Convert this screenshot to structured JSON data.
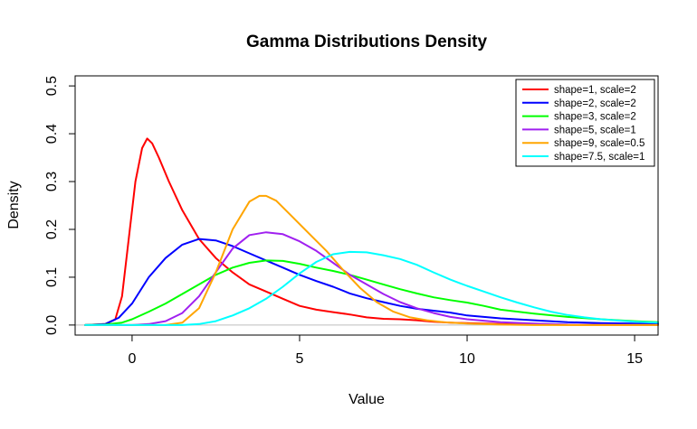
{
  "chart_data": {
    "type": "line",
    "title": "Gamma Distributions Density",
    "xlabel": "Value",
    "ylabel": "Density",
    "xlim": [
      -1.7,
      15.7
    ],
    "ylim": [
      -0.021,
      0.521
    ],
    "x_ticks": [
      0,
      5,
      10,
      15
    ],
    "y_ticks": [
      0.0,
      0.1,
      0.2,
      0.3,
      0.4,
      0.5
    ],
    "x_tick_labels": [
      "0",
      "5",
      "10",
      "15"
    ],
    "y_tick_labels": [
      "0.0",
      "0.1",
      "0.2",
      "0.3",
      "0.4",
      "0.5"
    ],
    "baseline": {
      "y": 0,
      "color": "#bebebe"
    },
    "grid": false,
    "legend_position": "top-right",
    "series": [
      {
        "name": "shape=1, scale=2",
        "color": "#ff0000",
        "points": [
          [
            -1.4,
            0
          ],
          [
            -0.8,
            0.002
          ],
          [
            -0.5,
            0.012
          ],
          [
            -0.3,
            0.06
          ],
          [
            -0.1,
            0.18
          ],
          [
            0.1,
            0.3
          ],
          [
            0.3,
            0.37
          ],
          [
            0.45,
            0.39
          ],
          [
            0.6,
            0.38
          ],
          [
            0.8,
            0.35
          ],
          [
            1.1,
            0.3
          ],
          [
            1.5,
            0.24
          ],
          [
            2.0,
            0.18
          ],
          [
            2.5,
            0.14
          ],
          [
            3.0,
            0.11
          ],
          [
            3.5,
            0.085
          ],
          [
            4.0,
            0.07
          ],
          [
            4.5,
            0.055
          ],
          [
            5.0,
            0.04
          ],
          [
            5.5,
            0.032
          ],
          [
            6.0,
            0.027
          ],
          [
            6.5,
            0.022
          ],
          [
            7.0,
            0.016
          ],
          [
            7.5,
            0.013
          ],
          [
            8.0,
            0.012
          ],
          [
            8.5,
            0.01
          ],
          [
            9.0,
            0.007
          ],
          [
            9.5,
            0.005
          ],
          [
            10.0,
            0.004
          ],
          [
            11.0,
            0.002
          ],
          [
            12.0,
            0.001
          ],
          [
            13.0,
            0.0005
          ],
          [
            15.7,
            0
          ]
        ]
      },
      {
        "name": "shape=2, scale=2",
        "color": "#0000ff",
        "points": [
          [
            -1.4,
            0
          ],
          [
            -0.8,
            0.002
          ],
          [
            -0.4,
            0.015
          ],
          [
            0,
            0.045
          ],
          [
            0.5,
            0.1
          ],
          [
            1.0,
            0.14
          ],
          [
            1.5,
            0.168
          ],
          [
            2.0,
            0.18
          ],
          [
            2.5,
            0.177
          ],
          [
            3.0,
            0.165
          ],
          [
            3.5,
            0.15
          ],
          [
            4.0,
            0.135
          ],
          [
            4.5,
            0.12
          ],
          [
            5.0,
            0.105
          ],
          [
            5.5,
            0.092
          ],
          [
            6.0,
            0.08
          ],
          [
            6.5,
            0.066
          ],
          [
            7.0,
            0.056
          ],
          [
            7.5,
            0.048
          ],
          [
            8.0,
            0.04
          ],
          [
            8.5,
            0.034
          ],
          [
            9.0,
            0.03
          ],
          [
            9.5,
            0.026
          ],
          [
            10.0,
            0.02
          ],
          [
            11.0,
            0.014
          ],
          [
            12.0,
            0.01
          ],
          [
            13.0,
            0.006
          ],
          [
            14.0,
            0.004
          ],
          [
            15.0,
            0.003
          ],
          [
            15.7,
            0.002
          ]
        ]
      },
      {
        "name": "shape=3, scale=2",
        "color": "#00ff00",
        "points": [
          [
            -1.4,
            0
          ],
          [
            -0.8,
            0.001
          ],
          [
            -0.3,
            0.005
          ],
          [
            0,
            0.012
          ],
          [
            0.5,
            0.028
          ],
          [
            1.0,
            0.045
          ],
          [
            1.5,
            0.065
          ],
          [
            2.0,
            0.085
          ],
          [
            2.5,
            0.105
          ],
          [
            3.0,
            0.12
          ],
          [
            3.5,
            0.13
          ],
          [
            4.0,
            0.135
          ],
          [
            4.5,
            0.134
          ],
          [
            5.0,
            0.128
          ],
          [
            5.5,
            0.12
          ],
          [
            6.0,
            0.113
          ],
          [
            6.5,
            0.105
          ],
          [
            7.0,
            0.095
          ],
          [
            7.5,
            0.085
          ],
          [
            8.0,
            0.075
          ],
          [
            8.5,
            0.066
          ],
          [
            9.0,
            0.058
          ],
          [
            9.5,
            0.052
          ],
          [
            10.0,
            0.047
          ],
          [
            10.5,
            0.04
          ],
          [
            11.0,
            0.032
          ],
          [
            12.0,
            0.024
          ],
          [
            13.0,
            0.017
          ],
          [
            14.0,
            0.012
          ],
          [
            15.0,
            0.008
          ],
          [
            15.7,
            0.006
          ]
        ]
      },
      {
        "name": "shape=5, scale=1",
        "color": "#a020f0",
        "points": [
          [
            -1.4,
            0
          ],
          [
            0,
            0
          ],
          [
            0.5,
            0.002
          ],
          [
            1.0,
            0.008
          ],
          [
            1.5,
            0.025
          ],
          [
            2.0,
            0.06
          ],
          [
            2.5,
            0.11
          ],
          [
            3.0,
            0.16
          ],
          [
            3.5,
            0.188
          ],
          [
            4.0,
            0.194
          ],
          [
            4.5,
            0.19
          ],
          [
            5.0,
            0.175
          ],
          [
            5.5,
            0.155
          ],
          [
            6.0,
            0.13
          ],
          [
            6.5,
            0.105
          ],
          [
            7.0,
            0.085
          ],
          [
            7.5,
            0.065
          ],
          [
            8.0,
            0.048
          ],
          [
            8.5,
            0.035
          ],
          [
            9.0,
            0.025
          ],
          [
            9.5,
            0.017
          ],
          [
            10.0,
            0.012
          ],
          [
            11.0,
            0.006
          ],
          [
            12.0,
            0.003
          ],
          [
            13.0,
            0.001
          ],
          [
            14.0,
            0.0005
          ],
          [
            15.7,
            0
          ]
        ]
      },
      {
        "name": "shape=9, scale=0.5",
        "color": "#ffa500",
        "points": [
          [
            -1.4,
            0
          ],
          [
            1.0,
            0
          ],
          [
            1.5,
            0.005
          ],
          [
            2.0,
            0.035
          ],
          [
            2.5,
            0.11
          ],
          [
            3.0,
            0.2
          ],
          [
            3.5,
            0.258
          ],
          [
            3.8,
            0.27
          ],
          [
            4.0,
            0.27
          ],
          [
            4.3,
            0.26
          ],
          [
            4.8,
            0.225
          ],
          [
            5.3,
            0.19
          ],
          [
            5.8,
            0.155
          ],
          [
            6.3,
            0.115
          ],
          [
            6.8,
            0.078
          ],
          [
            7.3,
            0.048
          ],
          [
            7.8,
            0.028
          ],
          [
            8.3,
            0.016
          ],
          [
            8.8,
            0.01
          ],
          [
            9.3,
            0.006
          ],
          [
            10.0,
            0.003
          ],
          [
            11.0,
            0.001
          ],
          [
            12.0,
            0
          ],
          [
            15.7,
            0
          ]
        ]
      },
      {
        "name": "shape=7.5, scale=1",
        "color": "#00ffff",
        "points": [
          [
            -1.4,
            0
          ],
          [
            1.5,
            0
          ],
          [
            2.0,
            0.002
          ],
          [
            2.5,
            0.008
          ],
          [
            3.0,
            0.02
          ],
          [
            3.5,
            0.035
          ],
          [
            4.0,
            0.055
          ],
          [
            4.5,
            0.08
          ],
          [
            5.0,
            0.108
          ],
          [
            5.5,
            0.132
          ],
          [
            6.0,
            0.148
          ],
          [
            6.5,
            0.153
          ],
          [
            7.0,
            0.152
          ],
          [
            7.5,
            0.146
          ],
          [
            8.0,
            0.138
          ],
          [
            8.5,
            0.126
          ],
          [
            9.0,
            0.11
          ],
          [
            9.5,
            0.095
          ],
          [
            10.0,
            0.082
          ],
          [
            10.5,
            0.07
          ],
          [
            11.0,
            0.058
          ],
          [
            11.5,
            0.047
          ],
          [
            12.0,
            0.037
          ],
          [
            12.5,
            0.028
          ],
          [
            13.0,
            0.021
          ],
          [
            13.5,
            0.016
          ],
          [
            14.0,
            0.012
          ],
          [
            15.0,
            0.007
          ],
          [
            15.7,
            0.005
          ]
        ]
      }
    ]
  }
}
